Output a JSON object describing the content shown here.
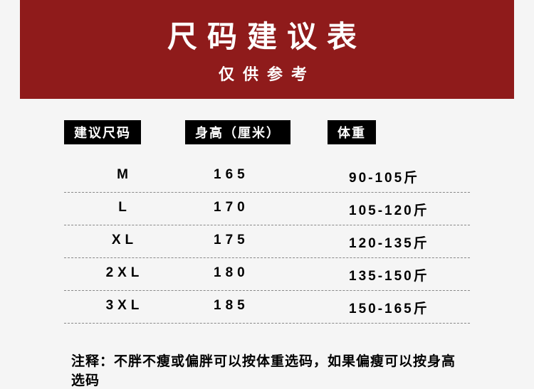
{
  "banner": {
    "title": "尺码建议表",
    "subtitle": "仅供参考",
    "bg_color": "#8f1b1b",
    "text_color": "#ffffff"
  },
  "table": {
    "headers": {
      "size": "建议尺码",
      "height": "身高（厘米）",
      "weight": "体重"
    },
    "header_bg": "#000000",
    "header_color": "#ffffff",
    "border_style": "dashed",
    "border_color": "#888888",
    "rows": [
      {
        "size": "M",
        "height": "165",
        "weight": "90-105斤"
      },
      {
        "size": "L",
        "height": "170",
        "weight": "105-120斤"
      },
      {
        "size": "XL",
        "height": "175",
        "weight": "120-135斤"
      },
      {
        "size": "2XL",
        "height": "180",
        "weight": "135-150斤"
      },
      {
        "size": "3XL",
        "height": "185",
        "weight": "150-165斤"
      }
    ]
  },
  "note": {
    "label": "注释：",
    "text": "不胖不瘦或偏胖可以按体重选码，如果偏瘦可以按身高选码"
  },
  "page_bg": "#f5f5f5"
}
